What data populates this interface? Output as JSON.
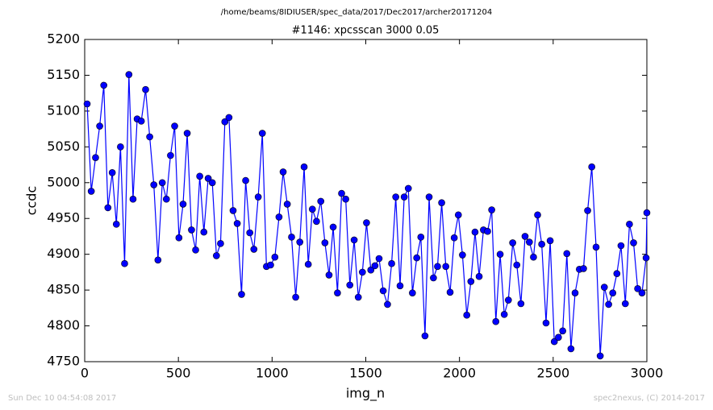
{
  "chart_data": {
    "type": "line",
    "suptitle": "/home/beams/8IDIUSER/spec_data/2017/Dec2017/archer20171204",
    "title": "#1146: xpcsscan 3000 0.05",
    "x_label": "img_n",
    "y_label": "ccdc",
    "footer_left": "Sun Dec 10 04:54:08 2017",
    "footer_right": "spec2nexus, (C) 2014-2017",
    "xlim": [
      0,
      3000
    ],
    "xticks": [
      0,
      500,
      1000,
      1500,
      2000,
      2500,
      3000
    ],
    "ylim": [
      4750,
      5200
    ],
    "yticks": [
      4750,
      4800,
      4850,
      4900,
      4950,
      5000,
      5050,
      5100,
      5150,
      5200
    ],
    "grid": false,
    "x": [
      13,
      35,
      58,
      80,
      102,
      124,
      147,
      169,
      191,
      213,
      236,
      258,
      280,
      302,
      325,
      347,
      369,
      391,
      414,
      436,
      458,
      480,
      503,
      525,
      547,
      570,
      592,
      614,
      636,
      659,
      681,
      703,
      725,
      748,
      770,
      792,
      814,
      837,
      859,
      881,
      903,
      926,
      948,
      970,
      992,
      1015,
      1037,
      1059,
      1081,
      1104,
      1126,
      1148,
      1171,
      1193,
      1215,
      1237,
      1260,
      1282,
      1304,
      1326,
      1349,
      1371,
      1393,
      1415,
      1438,
      1460,
      1482,
      1504,
      1527,
      1549,
      1571,
      1593,
      1616,
      1638,
      1660,
      1683,
      1705,
      1727,
      1749,
      1772,
      1794,
      1816,
      1838,
      1861,
      1883,
      1905,
      1927,
      1950,
      1972,
      1994,
      2016,
      2039,
      2061,
      2083,
      2105,
      2128,
      2150,
      2172,
      2194,
      2217,
      2239,
      2261,
      2284,
      2306,
      2328,
      2350,
      2373,
      2395,
      2417,
      2439,
      2462,
      2484,
      2506,
      2528,
      2551,
      2573,
      2595,
      2617,
      2640,
      2662,
      2684,
      2706,
      2729,
      2751,
      2773,
      2796,
      2818,
      2840,
      2862,
      2885,
      2907,
      2929,
      2951,
      2974,
      2996,
      3000
    ],
    "series": [
      {
        "name": "ccdc",
        "color": "#0000ff",
        "values": [
          5110,
          4988,
          5035,
          5079,
          5136,
          4965,
          5014,
          4942,
          5050,
          4887,
          5151,
          4977,
          5089,
          5086,
          5130,
          5064,
          4997,
          4892,
          5000,
          4977,
          5038,
          5079,
          4923,
          4970,
          5069,
          4934,
          4906,
          5009,
          4931,
          5006,
          5000,
          4898,
          4915,
          5085,
          5091,
          4961,
          4943,
          4844,
          5003,
          4930,
          4907,
          4980,
          5069,
          4883,
          4885,
          4896,
          4952,
          5015,
          4970,
          4924,
          4840,
          4917,
          5022,
          4886,
          4963,
          4946,
          4974,
          4916,
          4871,
          4938,
          4846,
          4985,
          4977,
          4857,
          4920,
          4840,
          4875,
          4944,
          4878,
          4884,
          4894,
          4849,
          4830,
          4887,
          4980,
          4856,
          4980,
          4992,
          4846,
          4895,
          4924,
          4786,
          4980,
          4867,
          4883,
          4972,
          4883,
          4847,
          4923,
          4955,
          4899,
          4815,
          4862,
          4931,
          4869,
          4934,
          4932,
          4962,
          4806,
          4900,
          4816,
          4836,
          4916,
          4885,
          4831,
          4925,
          4917,
          4896,
          4955,
          4914,
          4804,
          4919,
          4778,
          4784,
          4793,
          4901,
          4768,
          4846,
          4879,
          4880,
          4961,
          5022,
          4910,
          4758,
          4854,
          4830,
          4846,
          4873,
          4912,
          4831,
          4942,
          4916,
          4852,
          4846,
          4895,
          4958
        ]
      }
    ]
  }
}
